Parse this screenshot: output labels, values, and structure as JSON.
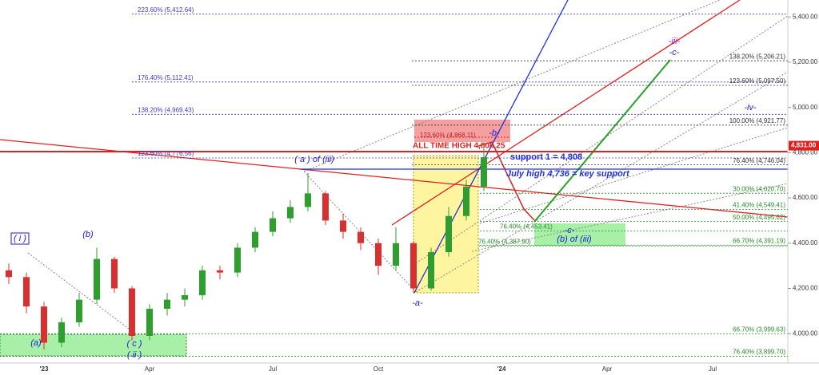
{
  "chart_data": {
    "type": "candlestick",
    "categories": [
      null,
      null,
      "'23",
      null,
      null,
      null,
      null,
      null,
      "Apr",
      null,
      null,
      null,
      null,
      null,
      null,
      "Jul",
      null,
      null,
      null,
      null,
      null,
      "Oct",
      null,
      null,
      null,
      null,
      null,
      null,
      "'24",
      null,
      null,
      null,
      null,
      null,
      "Apr",
      null,
      null,
      null,
      null,
      null,
      "Jul",
      null,
      null,
      null,
      null
    ],
    "open": [
      4280,
      4250,
      4120,
      3960,
      4050,
      4150,
      4330,
      4200,
      3990,
      4110,
      4150,
      4170,
      4280,
      4270,
      4380,
      4450,
      4510,
      4560,
      4620,
      4500,
      4450,
      4400,
      4300,
      4400,
      4200,
      4360,
      4520,
      4650,
      null,
      null,
      null,
      null,
      null,
      null,
      null,
      null,
      null,
      null,
      null,
      null,
      null,
      null,
      null,
      null,
      null
    ],
    "high": [
      4310,
      4270,
      4140,
      4070,
      4180,
      4380,
      4340,
      4210,
      4130,
      4180,
      4200,
      4300,
      4300,
      4400,
      4470,
      4540,
      4590,
      4710,
      4630,
      4530,
      4470,
      4420,
      4470,
      4410,
      4380,
      4560,
      4680,
      4820,
      null,
      null,
      null,
      null,
      null,
      null,
      null,
      null,
      null,
      null,
      null,
      null,
      null,
      null,
      null,
      null,
      null
    ],
    "low": [
      4220,
      4090,
      3930,
      3940,
      4030,
      4130,
      4180,
      3970,
      3970,
      4080,
      4120,
      4150,
      4240,
      4250,
      4360,
      4430,
      4490,
      4540,
      4480,
      4420,
      4370,
      4260,
      4280,
      4180,
      4190,
      4340,
      4500,
      4630,
      null,
      null,
      null,
      null,
      null,
      null,
      null,
      null,
      null,
      null,
      null,
      null,
      null,
      null,
      null,
      null,
      null
    ],
    "close": [
      4250,
      4120,
      3960,
      4050,
      4150,
      4330,
      4200,
      3990,
      4110,
      4150,
      4170,
      4280,
      4270,
      4380,
      4450,
      4510,
      4560,
      4620,
      4500,
      4450,
      4400,
      4300,
      4400,
      4200,
      4360,
      4520,
      4650,
      4780,
      null,
      null,
      null,
      null,
      null,
      null,
      null,
      null,
      null,
      null,
      null,
      null,
      null,
      null,
      null,
      null,
      null
    ],
    "up_color": "#2e9e2e",
    "down_color": "#d83030",
    "ylim": [
      3870,
      5475
    ],
    "yticks": [
      {
        "value": 4000,
        "label": "4,000.00"
      },
      {
        "value": 4200,
        "label": "4,200.00"
      },
      {
        "value": 4400,
        "label": "4,400.00"
      },
      {
        "value": 4600,
        "label": "4,600.00"
      },
      {
        "value": 4800,
        "label": "4,800.00"
      },
      {
        "value": 5000,
        "label": "5,000.00"
      },
      {
        "value": 5200,
        "label": "5,200.00"
      },
      {
        "value": 5400,
        "label": "5,400.00"
      }
    ],
    "last_price": {
      "value": 4831,
      "label": "4,831.00"
    },
    "left_levels": [
      {
        "label": "223.60% (5,412.64)",
        "value": 5412.64
      },
      {
        "label": "176.40% (5,112.41)",
        "value": 5112.41
      },
      {
        "label": "138.20% (4,969.43)",
        "value": 4969.43
      },
      {
        "label": "123.60% (4,776.56)",
        "value": 4776.56
      }
    ],
    "left_color": "#3a3ad0",
    "right_levels": [
      {
        "label": "138.20% (5,206.21)",
        "value": 5206.21
      },
      {
        "label": "123.60% (5,097.50)",
        "value": 5097.5
      },
      {
        "label": "100.00% (4,921.77)",
        "value": 4921.77
      },
      {
        "label": "76.40% (4,746.04)",
        "value": 4746.04
      }
    ],
    "right_color": "#333333",
    "green_levels": [
      {
        "label": "30.00% (4,620.70)",
        "value": 4620.7
      },
      {
        "label": "41.40% (4,549.41)",
        "value": 4549.41
      },
      {
        "label": "50.00% (4,495.62)",
        "value": 4495.62
      },
      {
        "label": "66.70% (4,391.19)",
        "value": 4391.19
      },
      {
        "label": "66.70% (3,999.63)",
        "value": 3999.63
      },
      {
        "label": "76.40% (3,899.70)",
        "value": 3899.7
      }
    ],
    "middle_levels": [
      {
        "label": "76.40% (4,453.41)",
        "value": 4453.41
      },
      {
        "label": "76.40% (4,387.90)",
        "value": 4387.9
      }
    ],
    "green_color": "#2a8a2a",
    "target_level": {
      "label": "123.60% (4,868.11)",
      "value": 4868.11
    },
    "wave_labels": [
      "( i )",
      "(a)",
      "(b)",
      "( c )",
      "( ii )",
      "( a ) of (iii)",
      "-a-",
      "-b-",
      "-c-",
      "(b) of (iii)",
      "-iii-",
      "-c-",
      "-iv-"
    ],
    "all_time_high": "ALL TIME HIGH  4,808.25",
    "support_1": "support 1 = 4,808",
    "july_high": "July high 4,736 = key support"
  }
}
